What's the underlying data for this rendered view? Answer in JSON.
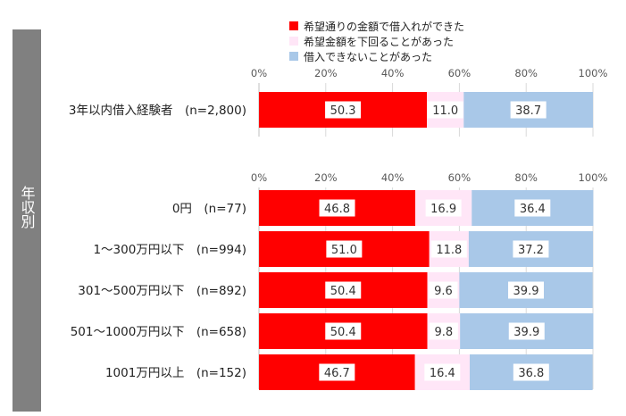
{
  "chart_data": {
    "type": "bar",
    "stacked": true,
    "orientation": "horizontal",
    "xlim": [
      0,
      100
    ],
    "xticks": [
      "0%",
      "20%",
      "40%",
      "60%",
      "80%",
      "100%"
    ],
    "legend": {
      "placement": "top-center",
      "entries": [
        {
          "name": "希望通りの金額で借入れができた",
          "color": "#ff0000"
        },
        {
          "name": "希望金額を下回ることがあった",
          "color": "#ffe6f7"
        },
        {
          "name": "借入できないことがあった",
          "color": "#a9c8e8"
        }
      ]
    },
    "side_label": "年収別",
    "panels": [
      {
        "categories": [
          "3年以内借入経験者　(n=2,800)"
        ],
        "series": [
          {
            "name": "希望通りの金額で借入れができた",
            "values": [
              50.3
            ]
          },
          {
            "name": "希望金額を下回ることがあった",
            "values": [
              11.0
            ]
          },
          {
            "name": "借入できないことがあった",
            "values": [
              38.7
            ]
          }
        ],
        "labels": [
          [
            "50.3",
            "11.0",
            "38.7"
          ]
        ]
      },
      {
        "categories": [
          "0円　(n=77)",
          "1～300万円以下　(n=994)",
          "301～500万円以下　(n=892)",
          "501～1000万円以下　(n=658)",
          "1001万円以上　(n=152)"
        ],
        "series": [
          {
            "name": "希望通りの金額で借入れができた",
            "values": [
              46.8,
              51.0,
              50.4,
              50.4,
              46.7
            ]
          },
          {
            "name": "希望金額を下回ることがあった",
            "values": [
              16.9,
              11.8,
              9.6,
              9.8,
              16.4
            ]
          },
          {
            "name": "借入できないことがあった",
            "values": [
              36.4,
              37.2,
              39.9,
              39.9,
              36.8
            ]
          }
        ],
        "labels": [
          [
            "46.8",
            "16.9",
            "36.4"
          ],
          [
            "51.0",
            "11.8",
            "37.2"
          ],
          [
            "50.4",
            "9.6",
            "39.9"
          ],
          [
            "50.4",
            "9.8",
            "39.9"
          ],
          [
            "46.7",
            "16.4",
            "36.8"
          ]
        ]
      }
    ]
  }
}
